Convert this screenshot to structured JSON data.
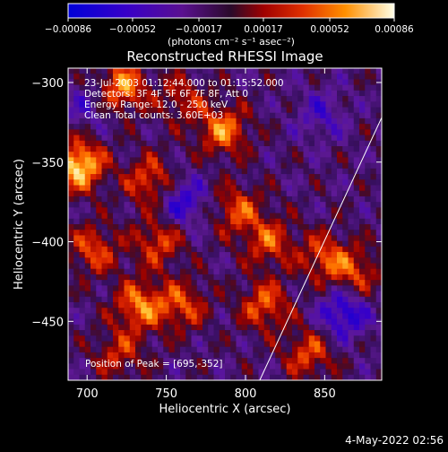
{
  "chart_data": {
    "type": "heatmap",
    "title": "Reconstructed RHESSI Image",
    "xlabel": "Heliocentric X (arcsec)",
    "ylabel": "Heliocentric Y (arcsec)",
    "xlim": [
      688,
      886
    ],
    "ylim": [
      -487,
      -291
    ],
    "x_ticks": [
      700,
      750,
      800,
      850
    ],
    "y_ticks": [
      -300,
      -350,
      -400,
      -450
    ],
    "x_tick_labels": [
      "700",
      "750",
      "800",
      "850"
    ],
    "y_tick_labels": [
      "−300",
      "−350",
      "−400",
      "−450"
    ],
    "colorbar": {
      "min": -0.00086,
      "max": 0.00086,
      "ticks": [
        -0.00086,
        -0.00052,
        -0.00017,
        0.00017,
        0.00052,
        0.00086
      ],
      "tick_labels": [
        "−0.00086",
        "−0.00052",
        "−0.00017",
        "0.00017",
        "0.00052",
        "0.00086"
      ],
      "unit_label": "(photons cm⁻² s⁻¹ asec⁻²)"
    },
    "info_lines": [
      "23-Jul-2003 01:12:44.000 to 01:15:52.000",
      "Detectors: 3F 4F 5F 6F 7F 8F, Att 0",
      "Energy Range: 12.0 - 25.0 keV",
      "Clean     Total counts: 3.60E+03"
    ],
    "peak_label": "Position of Peak = [695,-352]",
    "limb_line": {
      "points": [
        [
          809,
          -487
        ],
        [
          886,
          -322
        ]
      ]
    },
    "hot_spots": [
      {
        "x": 695,
        "y": -352,
        "v": 1.0
      },
      {
        "x": 722,
        "y": -303,
        "v": 0.75
      },
      {
        "x": 704,
        "y": -405,
        "v": 0.55
      },
      {
        "x": 740,
        "y": -362,
        "v": 0.6
      },
      {
        "x": 745,
        "y": -400,
        "v": 0.55
      },
      {
        "x": 733,
        "y": -440,
        "v": 0.7
      },
      {
        "x": 760,
        "y": -440,
        "v": 0.55
      },
      {
        "x": 786,
        "y": -330,
        "v": 0.7
      },
      {
        "x": 795,
        "y": -380,
        "v": 0.55
      },
      {
        "x": 815,
        "y": -400,
        "v": 0.55
      },
      {
        "x": 812,
        "y": -440,
        "v": 0.6
      },
      {
        "x": 850,
        "y": -410,
        "v": 0.55
      },
      {
        "x": 870,
        "y": -420,
        "v": 0.5
      },
      {
        "x": 840,
        "y": -470,
        "v": 0.55
      },
      {
        "x": 760,
        "y": -310,
        "v": 0.4
      },
      {
        "x": 720,
        "y": -470,
        "v": 0.45
      }
    ],
    "cold_spots": [
      {
        "x": 760,
        "y": -375,
        "v": -0.55
      },
      {
        "x": 862,
        "y": -445,
        "v": -0.65
      },
      {
        "x": 848,
        "y": -320,
        "v": -0.35
      },
      {
        "x": 700,
        "y": -315,
        "v": -0.3
      }
    ]
  },
  "footer": {
    "date": "4-May-2022 02:56"
  }
}
